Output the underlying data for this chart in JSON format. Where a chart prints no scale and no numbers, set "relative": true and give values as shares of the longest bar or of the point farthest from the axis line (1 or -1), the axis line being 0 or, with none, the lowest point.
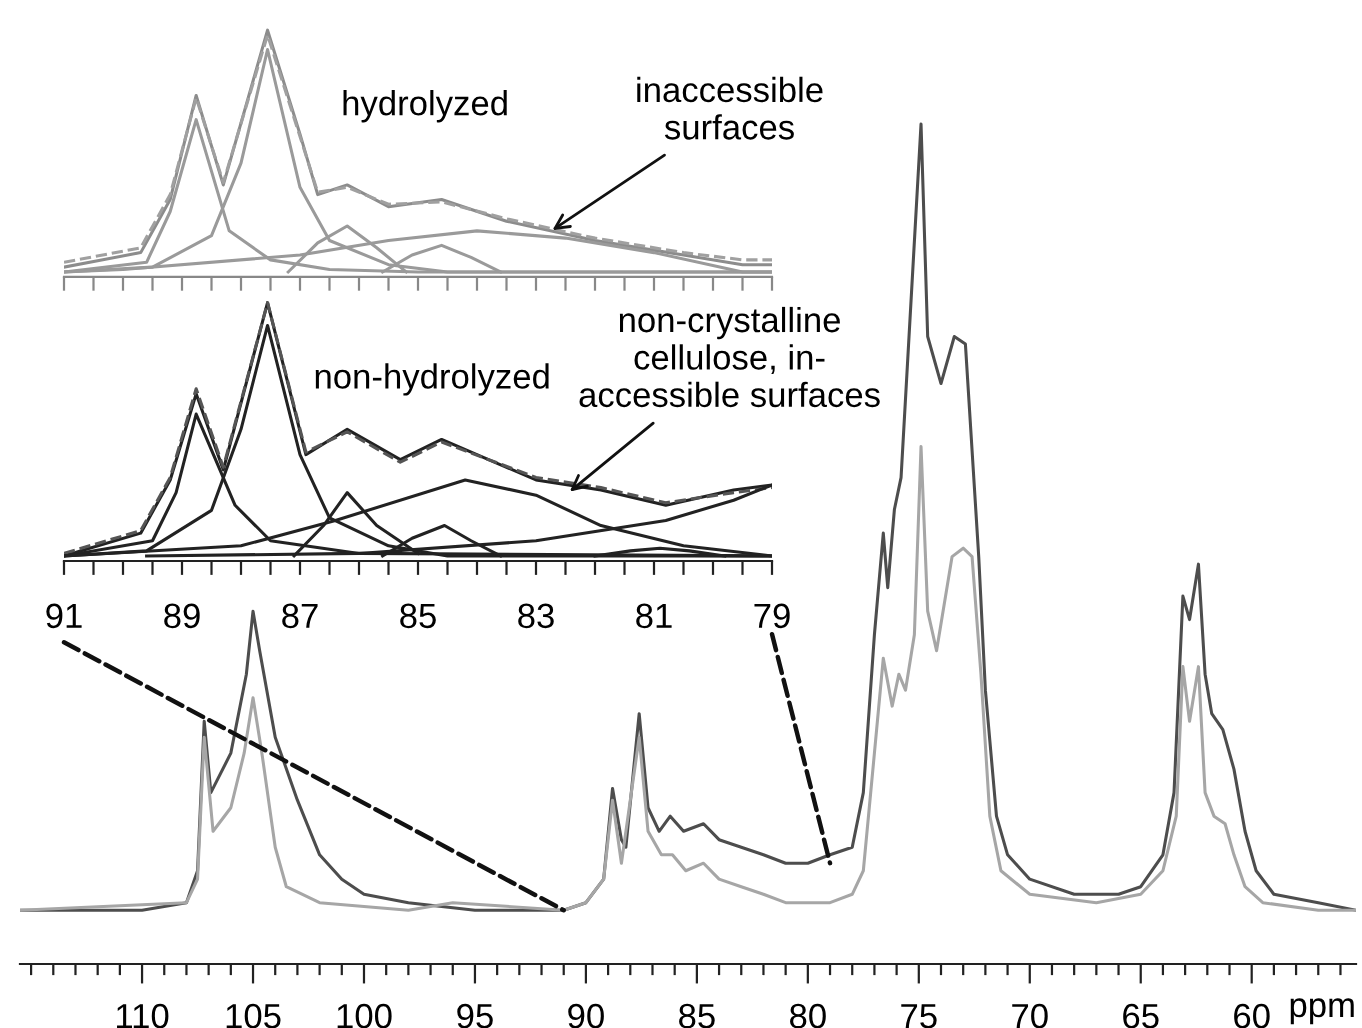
{
  "chart_data": [
    {
      "type": "line",
      "relative": true,
      "xlabel": "ppm",
      "xlim": [
        115.5,
        55.3
      ],
      "tick_labels": "x",
      "grid": false,
      "legend": false,
      "line_style": "solid",
      "xticks": [
        {
          "value": 115,
          "label": null
        },
        {
          "value": 114,
          "label": null
        },
        {
          "value": 113,
          "label": null
        },
        {
          "value": 112,
          "label": null
        },
        {
          "value": 111,
          "label": null
        },
        110,
        {
          "value": 109,
          "label": null
        },
        {
          "value": 108,
          "label": null
        },
        {
          "value": 107,
          "label": null
        },
        {
          "value": 106,
          "label": null
        },
        105,
        {
          "value": 104,
          "label": null
        },
        {
          "value": 103,
          "label": null
        },
        {
          "value": 102,
          "label": null
        },
        {
          "value": 101,
          "label": null
        },
        100,
        {
          "value": 99,
          "label": null
        },
        {
          "value": 98,
          "label": null
        },
        {
          "value": 97,
          "label": null
        },
        {
          "value": 96,
          "label": null
        },
        95,
        {
          "value": 94,
          "label": null
        },
        {
          "value": 93,
          "label": null
        },
        {
          "value": 92,
          "label": null
        },
        {
          "value": 91,
          "label": null
        },
        90,
        {
          "value": 89,
          "label": null
        },
        {
          "value": 88,
          "label": null
        },
        {
          "value": 87,
          "label": null
        },
        {
          "value": 86,
          "label": null
        },
        85,
        {
          "value": 84,
          "label": null
        },
        {
          "value": 83,
          "label": null
        },
        {
          "value": 82,
          "label": null
        },
        {
          "value": 81,
          "label": null
        },
        80,
        {
          "value": 79,
          "label": null
        },
        {
          "value": 78,
          "label": null
        },
        {
          "value": 77,
          "label": null
        },
        {
          "value": 76,
          "label": null
        },
        75,
        {
          "value": 74,
          "label": null
        },
        {
          "value": 73,
          "label": null
        },
        {
          "value": 72,
          "label": null
        },
        {
          "value": 71,
          "label": null
        },
        70,
        {
          "value": 69,
          "label": null
        },
        {
          "value": 68,
          "label": null
        },
        {
          "value": 67,
          "label": null
        },
        {
          "value": 66,
          "label": null
        },
        65,
        {
          "value": 64,
          "label": null
        },
        {
          "value": 63,
          "label": null
        },
        {
          "value": 62,
          "label": null
        },
        {
          "value": 61,
          "label": null
        },
        60,
        {
          "value": 59,
          "label": null
        },
        {
          "value": 58,
          "label": null
        },
        {
          "value": 57,
          "label": null
        },
        {
          "value": 56,
          "label": null
        }
      ],
      "series": [
        {
          "color": "#4d4d4d",
          "x": [
            115.5,
            110,
            108,
            107.5,
            107.2,
            106.9,
            106,
            105.3,
            105,
            104.7,
            104,
            103,
            102,
            101,
            100,
            98,
            95,
            91,
            90,
            89.2,
            88.8,
            88.4,
            88.2,
            87.6,
            87.2,
            86.7,
            86.2,
            85.6,
            84.7,
            84,
            83,
            82,
            81,
            80,
            79,
            78,
            77.5,
            77,
            76.6,
            76.4,
            76.1,
            75.8,
            74.9,
            74.6,
            74.0,
            73.4,
            72.9,
            72.3,
            72,
            71.5,
            71,
            70,
            68,
            66,
            65,
            64,
            63.5,
            63.1,
            62.8,
            62.4,
            62.1,
            61.8,
            61.3,
            60.8,
            60.3,
            59.8,
            59,
            57,
            55.3
          ],
          "values": [
            0.064,
            0.064,
            0.073,
            0.111,
            0.289,
            0.204,
            0.251,
            0.345,
            0.42,
            0.373,
            0.27,
            0.195,
            0.13,
            0.101,
            0.083,
            0.073,
            0.064,
            0.064,
            0.073,
            0.101,
            0.209,
            0.148,
            0.139,
            0.298,
            0.186,
            0.158,
            0.176,
            0.158,
            0.167,
            0.148,
            0.139,
            0.13,
            0.12,
            0.12,
            0.13,
            0.139,
            0.204,
            0.392,
            0.513,
            0.448,
            0.541,
            0.579,
            1.0,
            0.747,
            0.691,
            0.747,
            0.738,
            0.485,
            0.326,
            0.176,
            0.13,
            0.101,
            0.083,
            0.083,
            0.092,
            0.13,
            0.204,
            0.438,
            0.41,
            0.476,
            0.345,
            0.298,
            0.279,
            0.232,
            0.158,
            0.111,
            0.083,
            0.073,
            0.064
          ]
        },
        {
          "color": "#a6a6a6",
          "x": [
            115.5,
            108,
            107.5,
            107.2,
            106.8,
            106,
            105.4,
            105,
            104.6,
            104,
            103.5,
            102,
            98,
            96,
            91,
            90,
            89.2,
            88.8,
            88.4,
            87.6,
            87.2,
            86.6,
            86.1,
            85.5,
            84.7,
            84,
            83,
            82,
            81,
            80,
            79,
            78,
            77.5,
            77,
            76.6,
            76.2,
            75.9,
            75.6,
            75.2,
            74.9,
            74.6,
            74.2,
            73.5,
            73,
            72.6,
            72.2,
            71.8,
            71.3,
            70,
            67,
            65,
            64,
            63.4,
            63.1,
            62.8,
            62.4,
            62.1,
            61.7,
            61.2,
            60.8,
            60.3,
            59.5,
            57,
            55.3
          ],
          "values": [
            0.064,
            0.073,
            0.101,
            0.27,
            0.158,
            0.186,
            0.251,
            0.317,
            0.251,
            0.139,
            0.092,
            0.073,
            0.064,
            0.073,
            0.064,
            0.073,
            0.101,
            0.195,
            0.12,
            0.27,
            0.158,
            0.13,
            0.13,
            0.111,
            0.12,
            0.101,
            0.092,
            0.083,
            0.073,
            0.073,
            0.073,
            0.083,
            0.111,
            0.251,
            0.364,
            0.307,
            0.345,
            0.326,
            0.392,
            0.616,
            0.42,
            0.373,
            0.485,
            0.495,
            0.485,
            0.345,
            0.176,
            0.111,
            0.083,
            0.073,
            0.083,
            0.111,
            0.176,
            0.354,
            0.289,
            0.354,
            0.204,
            0.176,
            0.167,
            0.13,
            0.092,
            0.073,
            0.064,
            0.064
          ]
        }
      ]
    },
    {
      "type": "line",
      "relative": true,
      "xlim": [
        91,
        79
      ],
      "tick_labels": false,
      "grid": false,
      "legend": false,
      "xticks": [
        {
          "value": 91,
          "label": null
        },
        {
          "value": 90.5,
          "label": null
        },
        {
          "value": 90,
          "label": null
        },
        {
          "value": 89.5,
          "label": null
        },
        {
          "value": 89,
          "label": null
        },
        {
          "value": 88.5,
          "label": null
        },
        {
          "value": 88,
          "label": null
        },
        {
          "value": 87.5,
          "label": null
        },
        {
          "value": 87,
          "label": null
        },
        {
          "value": 86.5,
          "label": null
        },
        {
          "value": 86,
          "label": null
        },
        {
          "value": 85.5,
          "label": null
        },
        {
          "value": 85,
          "label": null
        },
        {
          "value": 84.5,
          "label": null
        },
        {
          "value": 84,
          "label": null
        },
        {
          "value": 83.5,
          "label": null
        },
        {
          "value": 83,
          "label": null
        },
        {
          "value": 82.5,
          "label": null
        },
        {
          "value": 82,
          "label": null
        },
        {
          "value": 81.5,
          "label": null
        },
        {
          "value": 81,
          "label": null
        },
        {
          "value": 80.5,
          "label": null
        },
        {
          "value": 80,
          "label": null
        },
        {
          "value": 79.5,
          "label": null
        },
        {
          "value": 79,
          "label": null
        }
      ],
      "annotations": [
        "hydrolyzed",
        {
          "text": "inaccessible\nsurfaces",
          "x": 82.8,
          "y": 0.16
        }
      ],
      "series": [
        {
          "color": "#8c8c8c",
          "x": [
            91,
            89.7,
            89.2,
            88.76,
            88.3,
            87.55,
            87.0,
            86.7,
            86.2,
            85.5,
            84.6,
            83.5,
            82,
            80.5,
            79.5,
            79
          ],
          "values": [
            0.02,
            0.08,
            0.3,
            0.73,
            0.36,
            1.0,
            0.57,
            0.32,
            0.36,
            0.27,
            0.3,
            0.21,
            0.13,
            0.07,
            0.03,
            0.03
          ]
        },
        {
          "color": "#a0a0a0",
          "line_style": "dashed",
          "x": [
            91,
            89.7,
            89.2,
            88.76,
            88.3,
            87.55,
            87.0,
            86.7,
            86.2,
            85.5,
            84.6,
            83.5,
            82,
            80.5,
            79.5,
            79
          ],
          "values": [
            0.04,
            0.1,
            0.32,
            0.72,
            0.37,
            0.98,
            0.56,
            0.33,
            0.35,
            0.28,
            0.29,
            0.22,
            0.14,
            0.08,
            0.05,
            0.05
          ]
        },
        {
          "color": "#9a9a9a",
          "x": [
            91,
            89.6,
            89.2,
            88.76,
            88.2,
            87.5,
            86.5,
            85,
            79
          ],
          "values": [
            0.0,
            0.04,
            0.25,
            0.63,
            0.17,
            0.05,
            0.01,
            0.0,
            0.0
          ]
        },
        {
          "color": "#9a9a9a",
          "x": [
            91,
            89.5,
            88.5,
            88.0,
            87.55,
            87.0,
            86.5,
            85.5,
            84.5,
            79
          ],
          "values": [
            0.0,
            0.02,
            0.15,
            0.45,
            0.92,
            0.35,
            0.13,
            0.03,
            0.0,
            0.0
          ]
        },
        {
          "color": "#9a9a9a",
          "x": [
            87.2,
            86.7,
            86.2,
            85.7,
            85.2
          ],
          "values": [
            0.0,
            0.12,
            0.19,
            0.1,
            0.0
          ]
        },
        {
          "color": "#9a9a9a",
          "x": [
            85.6,
            85.1,
            84.6,
            84.1,
            83.6
          ],
          "values": [
            0.0,
            0.07,
            0.11,
            0.06,
            0.0
          ]
        },
        {
          "color": "#9a9a9a",
          "x": [
            91,
            90,
            87,
            85.5,
            84,
            82.5,
            81,
            79.5,
            79
          ],
          "values": [
            0.0,
            0.01,
            0.07,
            0.13,
            0.17,
            0.14,
            0.08,
            0.0,
            0.0
          ]
        }
      ]
    },
    {
      "type": "line",
      "relative": true,
      "xlim": [
        91,
        79
      ],
      "tick_labels": "x",
      "grid": false,
      "legend": false,
      "xticks": [
        91,
        {
          "value": 90.5,
          "label": null
        },
        {
          "value": 90,
          "label": null
        },
        {
          "value": 89.5,
          "label": null
        },
        89,
        {
          "value": 88.5,
          "label": null
        },
        {
          "value": 88,
          "label": null
        },
        {
          "value": 87.5,
          "label": null
        },
        87,
        {
          "value": 86.5,
          "label": null
        },
        {
          "value": 86,
          "label": null
        },
        {
          "value": 85.5,
          "label": null
        },
        85,
        {
          "value": 84.5,
          "label": null
        },
        {
          "value": 84,
          "label": null
        },
        {
          "value": 83.5,
          "label": null
        },
        83,
        {
          "value": 82.5,
          "label": null
        },
        {
          "value": 82,
          "label": null
        },
        {
          "value": 81.5,
          "label": null
        },
        81,
        {
          "value": 80.5,
          "label": null
        },
        {
          "value": 80,
          "label": null
        },
        {
          "value": 79.5,
          "label": null
        },
        79
      ],
      "annotations": [
        "non-hydrolyzed",
        {
          "text": "non-crystalline\ncellulose, in-\naccessible surfaces",
          "x": 82.5,
          "y": 0.24
        }
      ],
      "series": [
        {
          "color": "#222222",
          "x": [
            91,
            89.7,
            89.2,
            88.76,
            88.3,
            87.55,
            86.9,
            86.2,
            85.3,
            84.6,
            83.0,
            81.9,
            80.8,
            79.65,
            79
          ],
          "values": [
            0.0,
            0.09,
            0.3,
            0.64,
            0.34,
            1.0,
            0.4,
            0.5,
            0.38,
            0.46,
            0.3,
            0.26,
            0.2,
            0.26,
            0.28
          ]
        },
        {
          "color": "#555555",
          "line_style": "dashed",
          "x": [
            91,
            89.7,
            89.2,
            88.76,
            88.3,
            87.55,
            86.9,
            86.2,
            85.3,
            84.6,
            83.0,
            81.9,
            80.8,
            79.65,
            79
          ],
          "values": [
            0.01,
            0.1,
            0.31,
            0.66,
            0.35,
            1.0,
            0.41,
            0.49,
            0.37,
            0.45,
            0.31,
            0.27,
            0.21,
            0.25,
            0.27
          ]
        },
        {
          "color": "#222222",
          "x": [
            91,
            89.5,
            89.1,
            88.76,
            88.1,
            87.5,
            86,
            79
          ],
          "values": [
            0.0,
            0.06,
            0.25,
            0.56,
            0.2,
            0.06,
            0.01,
            0.0
          ]
        },
        {
          "color": "#222222",
          "x": [
            91,
            89.6,
            88.5,
            88.0,
            87.55,
            87.0,
            86.5,
            85.5,
            84.5,
            79
          ],
          "values": [
            0.0,
            0.02,
            0.18,
            0.5,
            0.91,
            0.4,
            0.15,
            0.04,
            0.0,
            0.0
          ]
        },
        {
          "color": "#222222",
          "x": [
            87.1,
            86.6,
            86.2,
            85.7,
            85.0
          ],
          "values": [
            0.0,
            0.12,
            0.25,
            0.12,
            0.01
          ]
        },
        {
          "color": "#222222",
          "x": [
            85.6,
            85.1,
            84.55,
            84.1,
            83.6
          ],
          "values": [
            0.0,
            0.07,
            0.12,
            0.06,
            0.0
          ]
        },
        {
          "color": "#222222",
          "x": [
            91,
            88,
            86.4,
            84.2,
            83,
            81.9,
            80.5,
            79
          ],
          "values": [
            0.0,
            0.04,
            0.14,
            0.3,
            0.24,
            0.12,
            0.04,
            0.0
          ]
        },
        {
          "color": "#222222",
          "x": [
            89.6,
            86,
            83.0,
            80.8,
            79.65,
            79
          ],
          "values": [
            0.0,
            0.01,
            0.06,
            0.14,
            0.22,
            0.28
          ]
        },
        {
          "color": "#222222",
          "x": [
            82,
            81.4,
            80.9,
            80.4,
            79.8
          ],
          "values": [
            0.0,
            0.02,
            0.03,
            0.02,
            0.0
          ]
        }
      ]
    }
  ]
}
